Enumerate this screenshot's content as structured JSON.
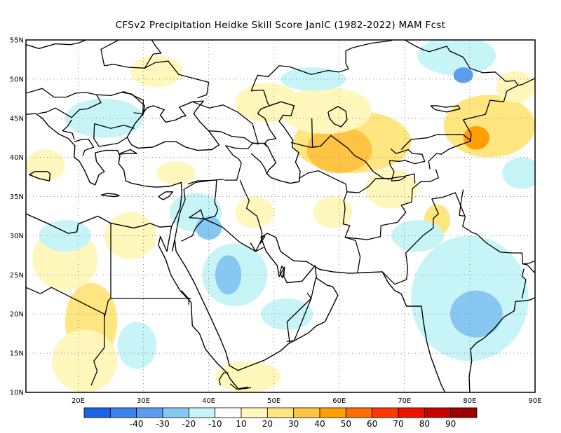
{
  "title": "CFSv2  Precipitation Heidke Skill Score JanIC (1982-2022) MAM Fcst",
  "map": {
    "lon_range": [
      12,
      90
    ],
    "lat_range": [
      10,
      55
    ],
    "lat_ticks": [
      {
        "value": 55,
        "label": "55N"
      },
      {
        "value": 50,
        "label": "50N"
      },
      {
        "value": 45,
        "label": "45N"
      },
      {
        "value": 40,
        "label": "40N"
      },
      {
        "value": 35,
        "label": "35N"
      },
      {
        "value": 30,
        "label": "30N"
      },
      {
        "value": 25,
        "label": "25N"
      },
      {
        "value": 20,
        "label": "20N"
      },
      {
        "value": 15,
        "label": "15N"
      },
      {
        "value": 10,
        "label": "10N"
      }
    ],
    "lon_ticks": [
      {
        "value": 20,
        "label": "20E"
      },
      {
        "value": 30,
        "label": "30E"
      },
      {
        "value": 40,
        "label": "40E"
      },
      {
        "value": 50,
        "label": "50E"
      },
      {
        "value": 60,
        "label": "60E"
      },
      {
        "value": 70,
        "label": "70E"
      },
      {
        "value": 80,
        "label": "80E"
      },
      {
        "value": 90,
        "label": "90E"
      }
    ],
    "gridlines": "dotted",
    "skill_patches": [
      {
        "lon": 62,
        "lat": 42,
        "rx": 9,
        "ry": 4,
        "color": "#ffe680"
      },
      {
        "lon": 60,
        "lat": 41,
        "rx": 5,
        "ry": 3,
        "color": "#ffc441"
      },
      {
        "lon": 83,
        "lat": 44,
        "rx": 7,
        "ry": 4,
        "color": "#ffe680"
      },
      {
        "lon": 81,
        "lat": 42.5,
        "rx": 2,
        "ry": 1.5,
        "color": "#ff9e00"
      },
      {
        "lon": 58,
        "lat": 46,
        "rx": 7,
        "ry": 3,
        "color": "#fff7bc"
      },
      {
        "lon": 49,
        "lat": 47,
        "rx": 5,
        "ry": 2.5,
        "color": "#fff7bc"
      },
      {
        "lon": 32,
        "lat": 51,
        "rx": 4,
        "ry": 2,
        "color": "#fff7bc"
      },
      {
        "lon": 22,
        "lat": 19,
        "rx": 4,
        "ry": 5,
        "color": "#ffe680"
      },
      {
        "lon": 21,
        "lat": 14,
        "rx": 5,
        "ry": 4,
        "color": "#fff7bc"
      },
      {
        "lon": 18,
        "lat": 27,
        "rx": 5,
        "ry": 4,
        "color": "#fff7bc"
      },
      {
        "lon": 28,
        "lat": 30,
        "rx": 4,
        "ry": 3,
        "color": "#fff7bc"
      },
      {
        "lon": 47,
        "lat": 33,
        "rx": 3,
        "ry": 2,
        "color": "#fff7bc"
      },
      {
        "lon": 59,
        "lat": 33,
        "rx": 3,
        "ry": 2,
        "color": "#fff7bc"
      },
      {
        "lon": 68,
        "lat": 36,
        "rx": 4,
        "ry": 2.5,
        "color": "#fff7bc"
      },
      {
        "lon": 75,
        "lat": 32,
        "rx": 2,
        "ry": 2,
        "color": "#ffe680"
      },
      {
        "lon": 15,
        "lat": 39,
        "rx": 3,
        "ry": 2,
        "color": "#fff7bc"
      },
      {
        "lon": 35,
        "lat": 38,
        "rx": 3,
        "ry": 1.5,
        "color": "#fff7bc"
      },
      {
        "lon": 46,
        "lat": 12,
        "rx": 5,
        "ry": 2,
        "color": "#fff7bc"
      },
      {
        "lon": 87,
        "lat": 49,
        "rx": 3,
        "ry": 2,
        "color": "#fff7bc"
      },
      {
        "lon": 44,
        "lat": 25,
        "rx": 5,
        "ry": 4,
        "color": "#c6f4f7"
      },
      {
        "lon": 43,
        "lat": 25,
        "rx": 2,
        "ry": 2.5,
        "color": "#86c8f2"
      },
      {
        "lon": 38,
        "lat": 33,
        "rx": 4,
        "ry": 2.5,
        "color": "#c6f4f7"
      },
      {
        "lon": 40,
        "lat": 31,
        "rx": 2,
        "ry": 1.5,
        "color": "#86c8f2"
      },
      {
        "lon": 80,
        "lat": 22,
        "rx": 9,
        "ry": 8,
        "color": "#c6f4f7"
      },
      {
        "lon": 81,
        "lat": 20,
        "rx": 4,
        "ry": 3,
        "color": "#86c8f2"
      },
      {
        "lon": 72,
        "lat": 30,
        "rx": 4,
        "ry": 2,
        "color": "#c6f4f7"
      },
      {
        "lon": 24,
        "lat": 45,
        "rx": 6,
        "ry": 2.5,
        "color": "#c6f4f7"
      },
      {
        "lon": 18,
        "lat": 30,
        "rx": 4,
        "ry": 2,
        "color": "#c6f4f7"
      },
      {
        "lon": 78,
        "lat": 53,
        "rx": 6,
        "ry": 2.5,
        "color": "#c6f4f7"
      },
      {
        "lon": 79,
        "lat": 50.5,
        "rx": 1.5,
        "ry": 1,
        "color": "#5d9df0"
      },
      {
        "lon": 56,
        "lat": 50,
        "rx": 5,
        "ry": 1.5,
        "color": "#c6f4f7"
      },
      {
        "lon": 88,
        "lat": 38,
        "rx": 3,
        "ry": 2,
        "color": "#c6f4f7"
      },
      {
        "lon": 29,
        "lat": 16,
        "rx": 3,
        "ry": 3,
        "color": "#c6f4f7"
      },
      {
        "lon": 52,
        "lat": 20,
        "rx": 4,
        "ry": 2,
        "color": "#c6f4f7"
      }
    ]
  },
  "colorbar": {
    "colors": [
      "#1a63e8",
      "#3a82f0",
      "#5d9df0",
      "#86c8f2",
      "#c6f4f7",
      "#ffffff",
      "#fff7bc",
      "#ffe680",
      "#ffc441",
      "#ff9e00",
      "#ff6c00",
      "#ff3800",
      "#f01000",
      "#c80000",
      "#9e0000"
    ],
    "labels": [
      {
        "after": 1,
        "text": "-40"
      },
      {
        "after": 2,
        "text": "-30"
      },
      {
        "after": 3,
        "text": "-20"
      },
      {
        "after": 4,
        "text": "-10"
      },
      {
        "after": 5,
        "text": "10"
      },
      {
        "after": 6,
        "text": "20"
      },
      {
        "after": 7,
        "text": "30"
      },
      {
        "after": 8,
        "text": "40"
      },
      {
        "after": 9,
        "text": "50"
      },
      {
        "after": 10,
        "text": "60"
      },
      {
        "after": 11,
        "text": "70"
      },
      {
        "after": 12,
        "text": "80"
      },
      {
        "after": 13,
        "text": "90"
      }
    ]
  }
}
